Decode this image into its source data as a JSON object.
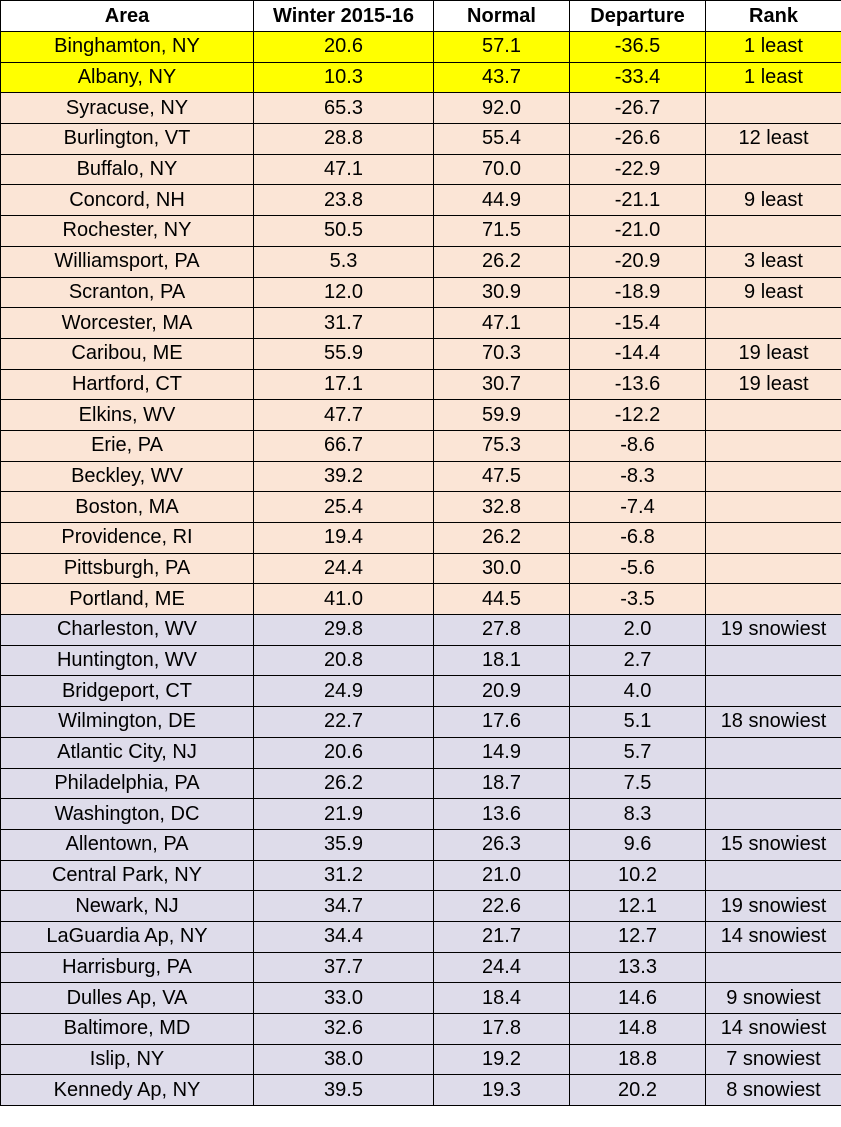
{
  "table": {
    "header": [
      "Area",
      "Winter 2015-16",
      "Normal",
      "Departure",
      "Rank"
    ],
    "header_fill": "#ffffff",
    "rows": [
      {
        "fill": "#ffff00",
        "cells": [
          "Binghamton, NY",
          "20.6",
          "57.1",
          "-36.5",
          "1 least"
        ]
      },
      {
        "fill": "#ffff00",
        "cells": [
          "Albany, NY",
          "10.3",
          "43.7",
          "-33.4",
          "1 least"
        ]
      },
      {
        "fill": "#fbe5d6",
        "cells": [
          "Syracuse, NY",
          "65.3",
          "92.0",
          "-26.7",
          null
        ]
      },
      {
        "fill": "#fbe5d6",
        "cells": [
          "Burlington, VT",
          "28.8",
          "55.4",
          "-26.6",
          "12 least"
        ]
      },
      {
        "fill": "#fbe5d6",
        "cells": [
          "Buffalo, NY",
          "47.1",
          "70.0",
          "-22.9",
          null
        ]
      },
      {
        "fill": "#fbe5d6",
        "cells": [
          "Concord, NH",
          "23.8",
          "44.9",
          "-21.1",
          "9 least"
        ]
      },
      {
        "fill": "#fbe5d6",
        "cells": [
          "Rochester, NY",
          "50.5",
          "71.5",
          "-21.0",
          null
        ]
      },
      {
        "fill": "#fbe5d6",
        "cells": [
          "Williamsport, PA",
          "5.3",
          "26.2",
          "-20.9",
          "3 least"
        ]
      },
      {
        "fill": "#fbe5d6",
        "cells": [
          "Scranton, PA",
          "12.0",
          "30.9",
          "-18.9",
          "9 least"
        ]
      },
      {
        "fill": "#fbe5d6",
        "cells": [
          "Worcester, MA",
          "31.7",
          "47.1",
          "-15.4",
          null
        ]
      },
      {
        "fill": "#fbe5d6",
        "cells": [
          "Caribou, ME",
          "55.9",
          "70.3",
          "-14.4",
          "19 least"
        ]
      },
      {
        "fill": "#fbe5d6",
        "cells": [
          "Hartford, CT",
          "17.1",
          "30.7",
          "-13.6",
          "19 least"
        ]
      },
      {
        "fill": "#fbe5d6",
        "cells": [
          "Elkins, WV",
          "47.7",
          "59.9",
          "-12.2",
          null
        ]
      },
      {
        "fill": "#fbe5d6",
        "cells": [
          "Erie, PA",
          "66.7",
          "75.3",
          "-8.6",
          null
        ]
      },
      {
        "fill": "#fbe5d6",
        "cells": [
          "Beckley, WV",
          "39.2",
          "47.5",
          "-8.3",
          null
        ]
      },
      {
        "fill": "#fbe5d6",
        "cells": [
          "Boston, MA",
          "25.4",
          "32.8",
          "-7.4",
          null
        ]
      },
      {
        "fill": "#fbe5d6",
        "cells": [
          "Providence, RI",
          "19.4",
          "26.2",
          "-6.8",
          null
        ]
      },
      {
        "fill": "#fbe5d6",
        "cells": [
          "Pittsburgh, PA",
          "24.4",
          "30.0",
          "-5.6",
          null
        ]
      },
      {
        "fill": "#fbe5d6",
        "cells": [
          "Portland, ME",
          "41.0",
          "44.5",
          "-3.5",
          null
        ]
      },
      {
        "fill": "#dedcea",
        "cells": [
          "Charleston, WV",
          "29.8",
          "27.8",
          "2.0",
          "19 snowiest"
        ]
      },
      {
        "fill": "#dedcea",
        "cells": [
          "Huntington, WV",
          "20.8",
          "18.1",
          "2.7",
          null
        ]
      },
      {
        "fill": "#dedcea",
        "cells": [
          "Bridgeport, CT",
          "24.9",
          "20.9",
          "4.0",
          null
        ]
      },
      {
        "fill": "#dedcea",
        "cells": [
          "Wilmington, DE",
          "22.7",
          "17.6",
          "5.1",
          "18 snowiest"
        ]
      },
      {
        "fill": "#dedcea",
        "cells": [
          "Atlantic City, NJ",
          "20.6",
          "14.9",
          "5.7",
          null
        ]
      },
      {
        "fill": "#dedcea",
        "cells": [
          "Philadelphia, PA",
          "26.2",
          "18.7",
          "7.5",
          null
        ]
      },
      {
        "fill": "#dedcea",
        "cells": [
          "Washington, DC",
          "21.9",
          "13.6",
          "8.3",
          null
        ]
      },
      {
        "fill": "#dedcea",
        "cells": [
          "Allentown, PA",
          "35.9",
          "26.3",
          "9.6",
          "15 snowiest"
        ]
      },
      {
        "fill": "#dedcea",
        "cells": [
          "Central Park, NY",
          "31.2",
          "21.0",
          "10.2",
          null
        ]
      },
      {
        "fill": "#dedcea",
        "cells": [
          "Newark, NJ",
          "34.7",
          "22.6",
          "12.1",
          "19 snowiest"
        ]
      },
      {
        "fill": "#dedcea",
        "cells": [
          "LaGuardia Ap, NY",
          "34.4",
          "21.7",
          "12.7",
          "14 snowiest"
        ]
      },
      {
        "fill": "#dedcea",
        "cells": [
          "Harrisburg, PA",
          "37.7",
          "24.4",
          "13.3",
          null
        ]
      },
      {
        "fill": "#dedcea",
        "cells": [
          "Dulles Ap, VA",
          "33.0",
          "18.4",
          "14.6",
          "9 snowiest"
        ]
      },
      {
        "fill": "#dedcea",
        "cells": [
          "Baltimore, MD",
          "32.6",
          "17.8",
          "14.8",
          "14 snowiest"
        ]
      },
      {
        "fill": "#dedcea",
        "cells": [
          "Islip, NY",
          "38.0",
          "19.2",
          "18.8",
          "7 snowiest"
        ]
      },
      {
        "fill": "#dedcea",
        "cells": [
          "Kennedy Ap, NY",
          "39.5",
          "19.3",
          "20.2",
          "8 snowiest"
        ]
      }
    ]
  }
}
